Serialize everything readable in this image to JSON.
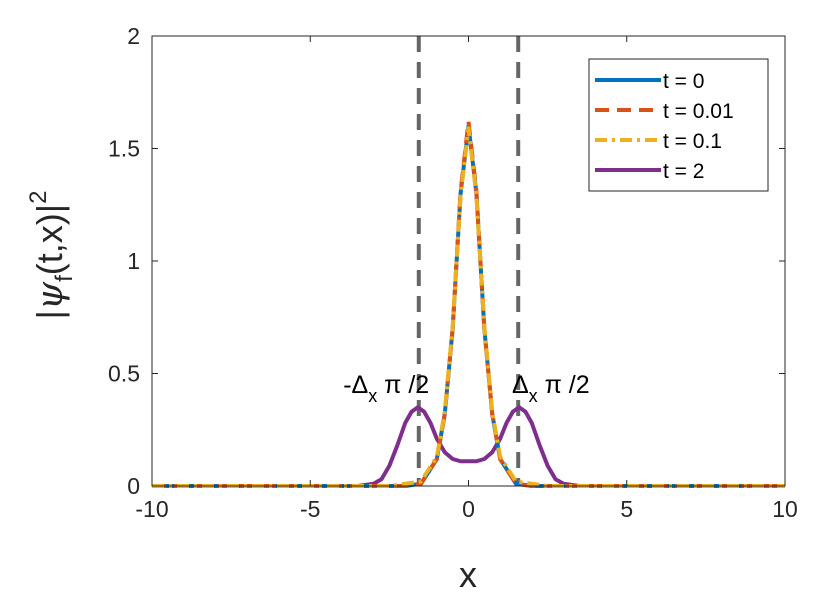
{
  "chart_data": {
    "type": "line",
    "xlabel": "x",
    "ylabel": "|ψf(t,x)|2",
    "ylabel_parts": {
      "left_bar": "|",
      "psi": "ψ",
      "subscript": "f",
      "args": "(t,x)",
      "right_bar": "|",
      "superscript": "2"
    },
    "xlim": [
      -10,
      10
    ],
    "ylim": [
      0,
      2
    ],
    "x_ticks": [
      -10,
      -5,
      0,
      5,
      10
    ],
    "x_tick_labels": [
      "-10",
      "-5",
      "0",
      "5",
      "10"
    ],
    "y_ticks": [
      0,
      0.5,
      1,
      1.5,
      2
    ],
    "y_tick_labels": [
      "0",
      "0.5",
      "1",
      "1.5",
      "2"
    ],
    "grid": false,
    "legend_position": "top-right",
    "series": [
      {
        "name": "t = 0",
        "color": "#0072BD",
        "style": "solid",
        "x": [
          -10,
          -2,
          -1.5,
          -1,
          -0.75,
          -0.5,
          -0.25,
          0,
          0.25,
          0.5,
          0.75,
          1,
          1.5,
          2,
          10
        ],
        "y": [
          0,
          0,
          0.01,
          0.12,
          0.32,
          0.7,
          1.3,
          1.6,
          1.3,
          0.7,
          0.32,
          0.12,
          0.01,
          0,
          0
        ]
      },
      {
        "name": "t = 0.01",
        "color": "#D95319",
        "style": "dashed",
        "x": [
          -10,
          -2,
          -1.5,
          -1,
          -0.75,
          -0.5,
          -0.25,
          0,
          0.25,
          0.5,
          0.75,
          1,
          1.5,
          2,
          10
        ],
        "y": [
          0,
          0,
          0.01,
          0.12,
          0.32,
          0.7,
          1.31,
          1.62,
          1.31,
          0.7,
          0.32,
          0.12,
          0.01,
          0,
          0
        ]
      },
      {
        "name": "t = 0.1",
        "color": "#EDB120",
        "style": "dashdot",
        "x": [
          -10,
          -2.5,
          -2,
          -1.5,
          -1,
          -0.75,
          -0.5,
          -0.25,
          0,
          0.25,
          0.5,
          0.75,
          1,
          1.5,
          2,
          2.5,
          10
        ],
        "y": [
          0,
          0,
          0.01,
          0.02,
          0.13,
          0.33,
          0.71,
          1.29,
          1.59,
          1.29,
          0.71,
          0.33,
          0.13,
          0.02,
          0.01,
          0,
          0
        ]
      },
      {
        "name": "t = 2",
        "color": "#7E2F8E",
        "style": "solid",
        "x": [
          -10,
          -3.5,
          -3,
          -2.75,
          -2.5,
          -2.25,
          -2,
          -1.8,
          -1.6,
          -1.4,
          -1.2,
          -1,
          -0.75,
          -0.5,
          -0.25,
          0,
          0.25,
          0.5,
          0.75,
          1,
          1.2,
          1.4,
          1.6,
          1.8,
          2,
          2.25,
          2.5,
          2.75,
          3,
          3.5,
          10
        ],
        "y": [
          0,
          0,
          0.01,
          0.03,
          0.09,
          0.18,
          0.28,
          0.33,
          0.35,
          0.33,
          0.28,
          0.21,
          0.15,
          0.12,
          0.11,
          0.11,
          0.11,
          0.12,
          0.15,
          0.21,
          0.28,
          0.33,
          0.35,
          0.33,
          0.28,
          0.18,
          0.09,
          0.03,
          0.01,
          0,
          0
        ]
      }
    ],
    "vertical_lines": [
      {
        "x": -1.5708,
        "color": "#666666",
        "style": "dashed"
      },
      {
        "x": 1.5708,
        "color": "#666666",
        "style": "dashed"
      }
    ],
    "annotations": [
      {
        "x": -2.6,
        "y": 0.45,
        "prefix": "-",
        "delta": "Δ",
        "subscript": "x",
        "rest": " π /2"
      },
      {
        "x": 2.6,
        "y": 0.45,
        "prefix": "",
        "delta": "Δ",
        "subscript": "x",
        "rest": " π /2"
      }
    ]
  }
}
